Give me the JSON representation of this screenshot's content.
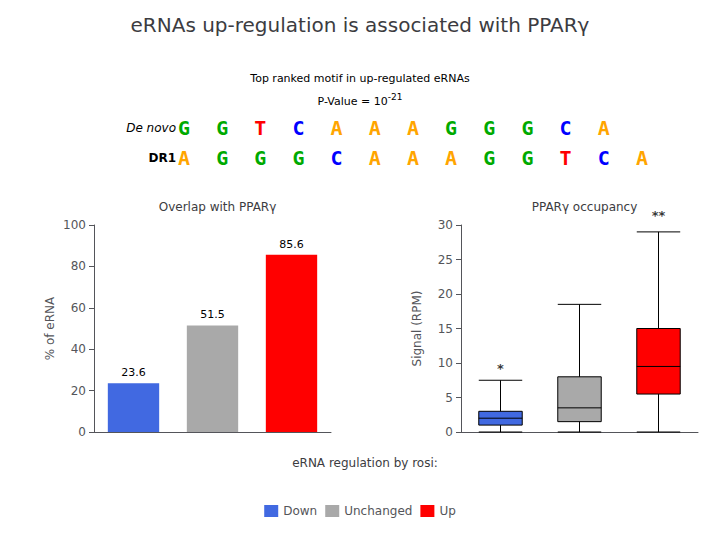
{
  "title": "eRNAs up-regulation is associated with PPARγ",
  "motif": {
    "line1": "Top ranked motif in up-regulated eRNAs",
    "pvalue": "P-Value = 10",
    "exponent": "-21",
    "logos": [
      {
        "label": "De novo",
        "sequence": "GGTCAAAGGGCA"
      },
      {
        "label": "DR1",
        "sequence": "AGGGCAAAGGTCA"
      }
    ],
    "base_colors": {
      "G": "#00AA00",
      "T": "#FF0000",
      "C": "#0000FF",
      "A": "#FFA500"
    }
  },
  "legend": "bottom",
  "legend_title": "eRNA regulation by rosi:",
  "chart_data": [
    {
      "type": "bar",
      "title": "Overlap with PPARγ",
      "categories": [
        "Down",
        "Unchanged",
        "Up"
      ],
      "values": [
        23.6,
        51.5,
        85.6
      ],
      "colors": [
        "#4169E1",
        "#A9A9A9",
        "#FF0000"
      ],
      "ylabel": "% of eRNA",
      "ylim": [
        0,
        100
      ],
      "yticks": [
        0,
        20,
        40,
        60,
        80,
        100
      ],
      "data_labels": true,
      "tick_labels": "y"
    },
    {
      "type": "box",
      "title": "PPARγ occupancy",
      "categories": [
        "Down",
        "Unchanged",
        "Up"
      ],
      "boxes": [
        {
          "whislo": 0.0,
          "q1": 1.0,
          "med": 2.0,
          "q3": 3.0,
          "whishi": 7.5
        },
        {
          "whislo": 0.0,
          "q1": 1.5,
          "med": 3.5,
          "q3": 8.0,
          "whishi": 18.5
        },
        {
          "whislo": 0.0,
          "q1": 5.5,
          "med": 9.5,
          "q3": 15.0,
          "whishi": 29.0
        }
      ],
      "colors": [
        "#4169E1",
        "#A9A9A9",
        "#FF0000"
      ],
      "ylabel": "Signal (RPM)",
      "ylim": [
        0,
        30
      ],
      "yticks": [
        0,
        5,
        10,
        15,
        20,
        25,
        30
      ],
      "annotations": [
        {
          "text": "*",
          "x": "Down",
          "y": 8.0
        },
        {
          "text": "**",
          "x": "Up",
          "y": 30.2
        }
      ],
      "tick_labels": "y"
    }
  ]
}
